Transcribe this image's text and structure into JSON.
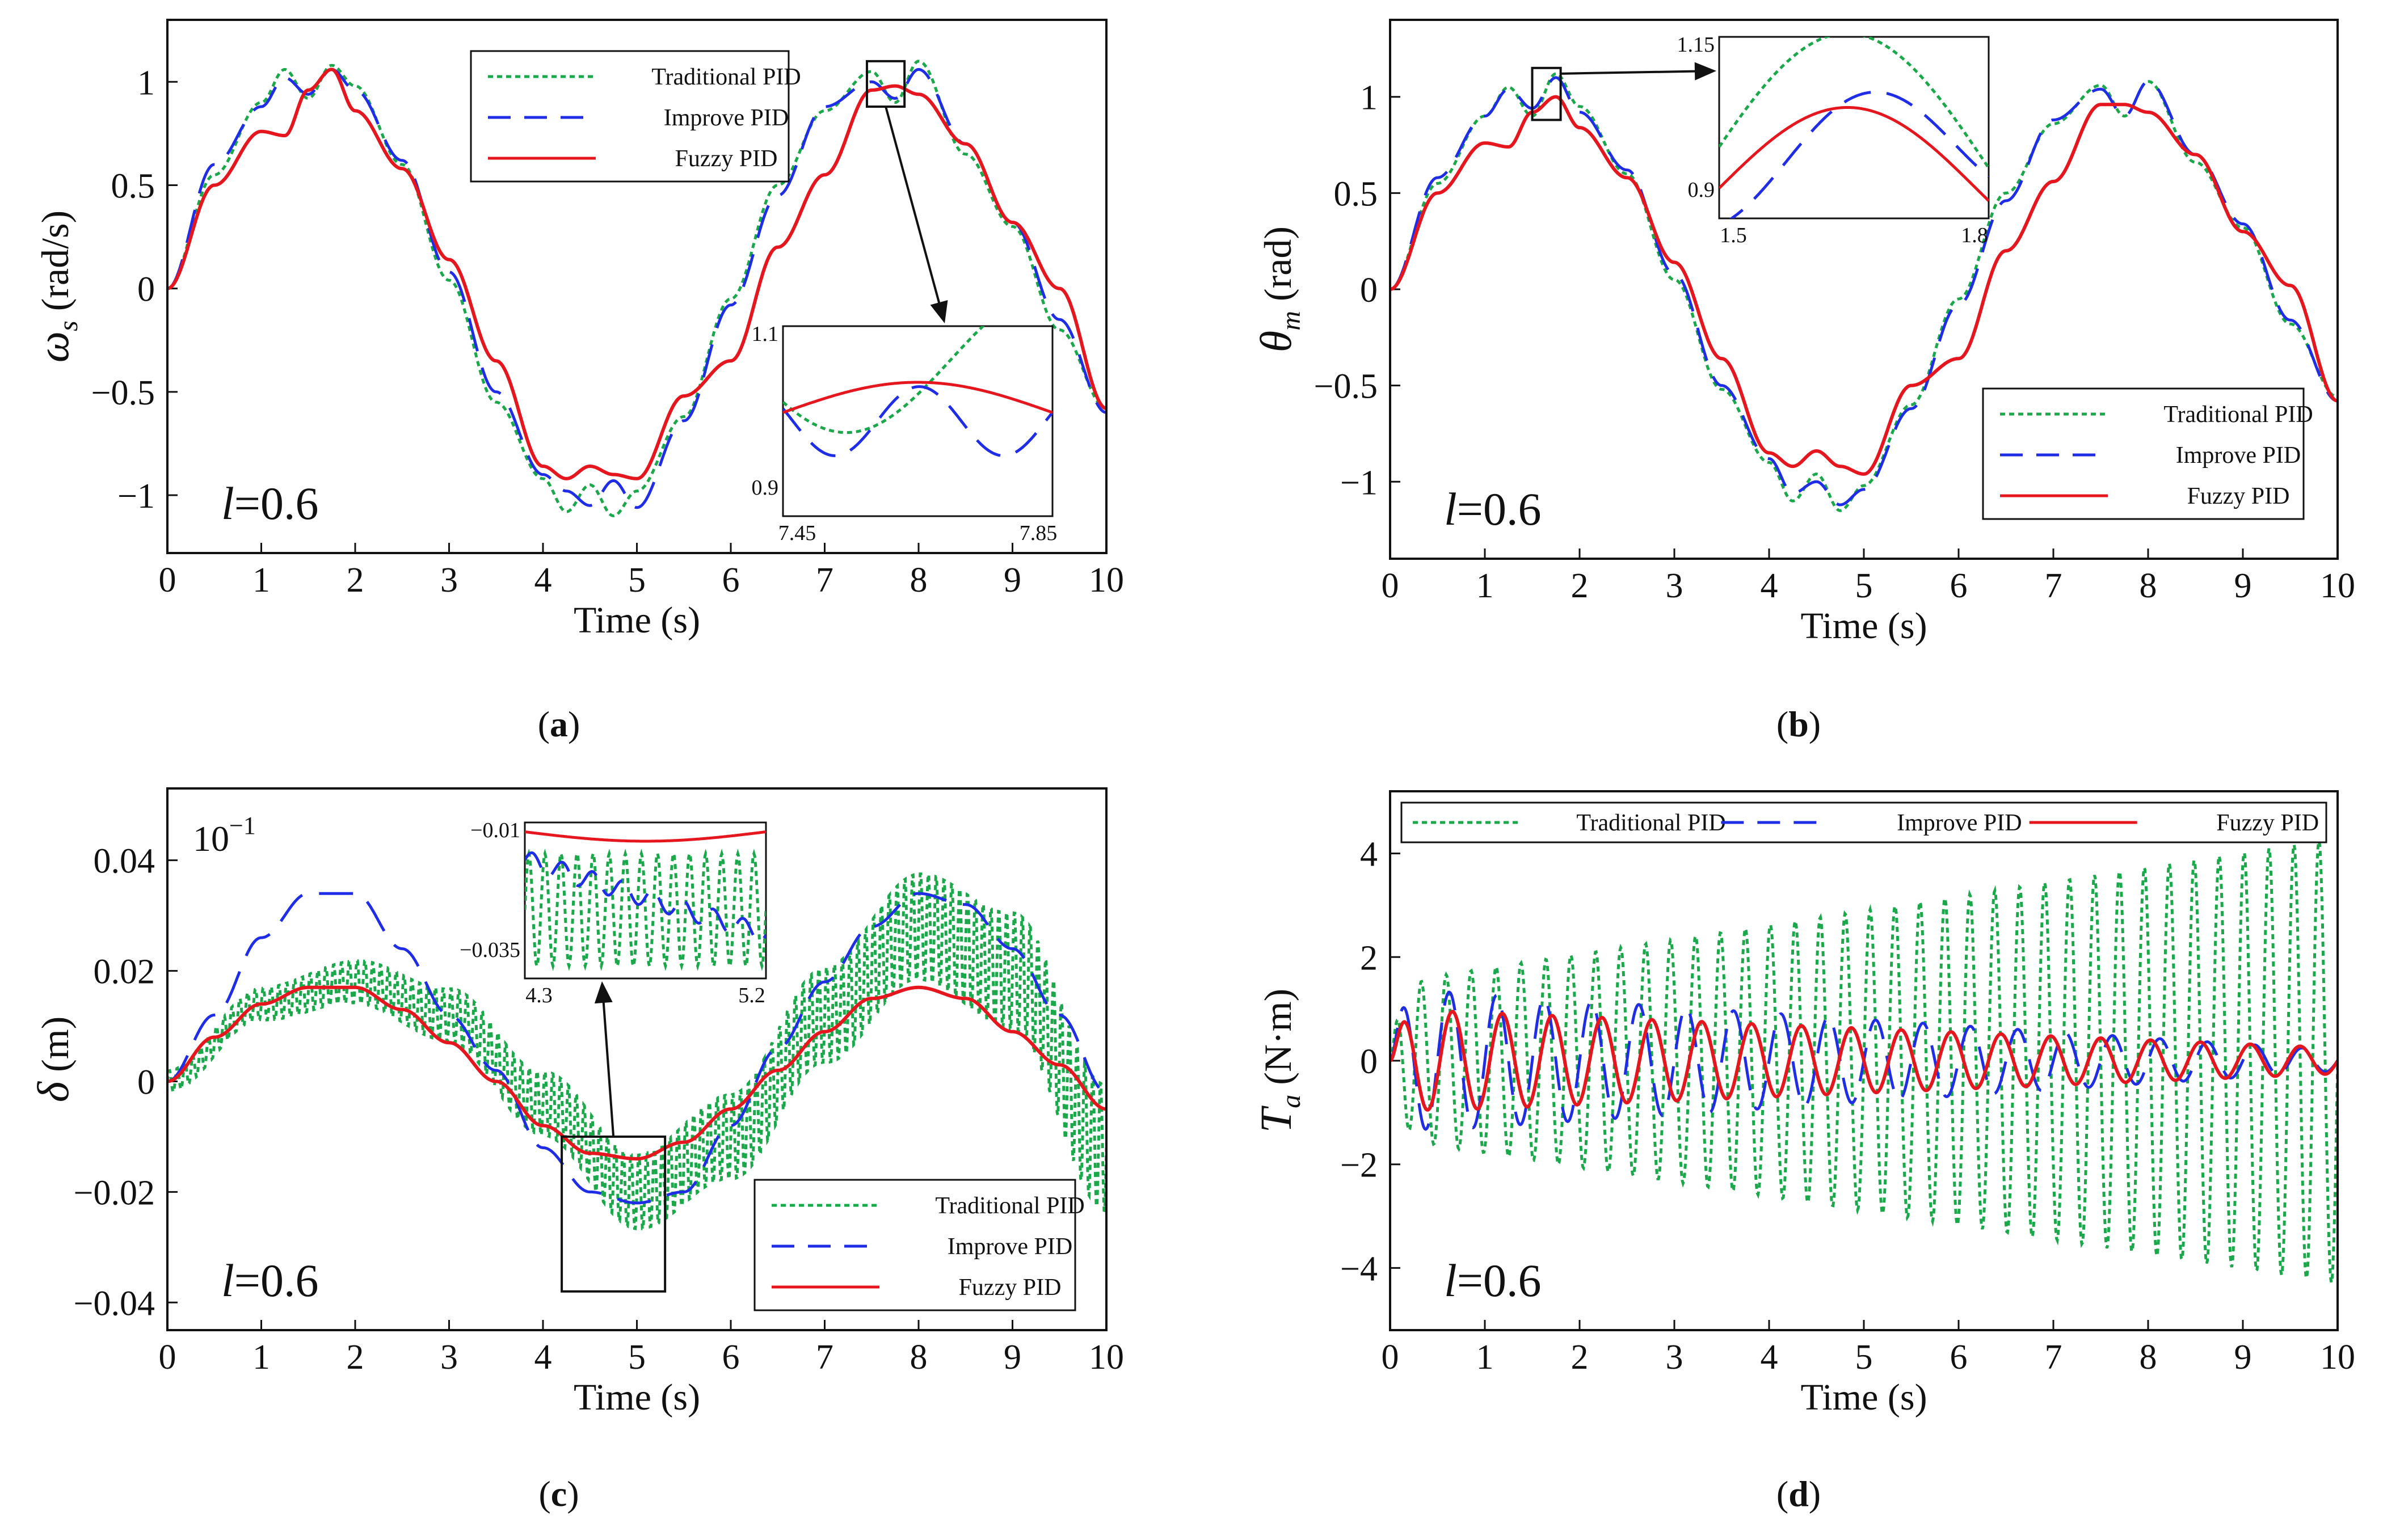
{
  "colors": {
    "traditional": "#1aa84a",
    "improve": "#1f2ee6",
    "fuzzy": "#e5161e",
    "axis": "#111111"
  },
  "legend_labels": [
    "Traditional PID",
    "Improve PID",
    "Fuzzy PID"
  ],
  "chart_data": [
    {
      "id": "a",
      "type": "line",
      "caption": "(a)",
      "label": "a",
      "xlabel": "Time  (s)",
      "ylabel_symbol": "ω",
      "ylabel_sub": "s",
      "ylabel_unit": " (rad/s)",
      "xlim": [
        0,
        10
      ],
      "ylim": [
        -1.28,
        1.3
      ],
      "xticks": [
        "0",
        "1",
        "2",
        "3",
        "4",
        "5",
        "6",
        "7",
        "8",
        "9",
        "10"
      ],
      "yticks": [
        {
          "v": 1,
          "t": "1"
        },
        {
          "v": 0.5,
          "t": "0.5"
        },
        {
          "v": 0,
          "t": "0"
        },
        {
          "v": -0.5,
          "t": "−0.5"
        },
        {
          "v": -1,
          "t": "−1"
        }
      ],
      "annotation": "l=0.6",
      "legend": "top-center",
      "series": [
        {
          "name": "Traditional PID",
          "x": [
            0,
            0.5,
            1,
            1.25,
            1.5,
            1.75,
            2,
            2.5,
            3,
            3.5,
            4,
            4.25,
            4.5,
            4.75,
            5,
            5.5,
            6,
            6.5,
            7,
            7.5,
            7.75,
            8,
            8.5,
            9,
            9.5,
            10
          ],
          "y": [
            0,
            0.55,
            0.9,
            1.06,
            0.92,
            1.08,
            0.98,
            0.6,
            0.04,
            -0.55,
            -0.92,
            -1.08,
            -0.95,
            -1.1,
            -0.98,
            -0.62,
            -0.05,
            0.5,
            0.86,
            1.05,
            0.9,
            1.1,
            0.65,
            0.3,
            -0.2,
            -0.58
          ]
        },
        {
          "name": "Improve PID",
          "x": [
            0,
            0.5,
            1,
            1.25,
            1.5,
            1.75,
            2,
            2.5,
            3,
            3.5,
            4,
            4.25,
            4.5,
            4.75,
            5,
            5.5,
            6,
            6.5,
            7,
            7.5,
            7.75,
            8,
            8.5,
            9,
            9.5,
            10
          ],
          "y": [
            0,
            0.6,
            0.88,
            1.02,
            0.94,
            1.06,
            0.96,
            0.62,
            0.08,
            -0.5,
            -0.9,
            -0.98,
            -1.05,
            -0.93,
            -1.06,
            -0.64,
            -0.08,
            0.45,
            0.88,
            1.0,
            0.92,
            1.06,
            0.7,
            0.32,
            -0.15,
            -0.6
          ]
        },
        {
          "name": "Fuzzy PID",
          "x": [
            0,
            0.5,
            1,
            1.25,
            1.5,
            1.75,
            2,
            2.5,
            3,
            3.5,
            4,
            4.25,
            4.5,
            4.75,
            5,
            5.5,
            6,
            6.5,
            7,
            7.5,
            7.75,
            8,
            8.5,
            9,
            9.5,
            10
          ],
          "y": [
            0,
            0.5,
            0.76,
            0.74,
            0.96,
            1.06,
            0.86,
            0.58,
            0.14,
            -0.35,
            -0.86,
            -0.92,
            -0.86,
            -0.9,
            -0.92,
            -0.52,
            -0.35,
            0.2,
            0.55,
            0.96,
            0.98,
            0.94,
            0.7,
            0.32,
            0.0,
            -0.58
          ]
        }
      ],
      "inset": {
        "xlim": [
          7.45,
          7.85
        ],
        "ylim": [
          0.88,
          1.1
        ],
        "xticks": [
          "7.45",
          "7.85"
        ],
        "yticks": [
          "1.1",
          "0.9"
        ],
        "zoom_box": [
          7.45,
          7.85,
          0.88,
          1.1
        ]
      }
    },
    {
      "id": "b",
      "type": "line",
      "caption": "(b)",
      "label": "b",
      "xlabel": "Time  (s)",
      "ylabel_symbol": "θ",
      "ylabel_sub": "m",
      "ylabel_unit": " (rad)",
      "xlim": [
        0,
        10
      ],
      "ylim": [
        -1.4,
        1.4
      ],
      "xticks": [
        "0",
        "1",
        "2",
        "3",
        "4",
        "5",
        "6",
        "7",
        "8",
        "9",
        "10"
      ],
      "yticks": [
        {
          "v": 1,
          "t": "1"
        },
        {
          "v": 0.5,
          "t": "0.5"
        },
        {
          "v": 0,
          "t": "0"
        },
        {
          "v": -0.5,
          "t": "−0.5"
        },
        {
          "v": -1,
          "t": "−1"
        }
      ],
      "annotation": "l=0.6",
      "legend": "bottom-right",
      "series": [
        {
          "name": "Traditional PID",
          "x": [
            0,
            0.5,
            1,
            1.25,
            1.5,
            1.75,
            2,
            2.5,
            3,
            3.5,
            4,
            4.25,
            4.5,
            4.75,
            5,
            5.5,
            6,
            6.5,
            7,
            7.5,
            7.75,
            8,
            8.5,
            9,
            9.5,
            10
          ],
          "y": [
            0,
            0.55,
            0.9,
            1.05,
            0.9,
            1.12,
            0.95,
            0.6,
            0.05,
            -0.52,
            -0.9,
            -1.1,
            -0.96,
            -1.15,
            -1.02,
            -0.6,
            -0.05,
            0.5,
            0.86,
            1.06,
            0.9,
            1.08,
            0.66,
            0.32,
            -0.18,
            -0.56
          ]
        },
        {
          "name": "Improve PID",
          "x": [
            0,
            0.5,
            1,
            1.25,
            1.5,
            1.75,
            2,
            2.5,
            3,
            3.5,
            4,
            4.25,
            4.5,
            4.75,
            5,
            5.5,
            6,
            6.5,
            7,
            7.5,
            7.75,
            8,
            8.5,
            9,
            9.5,
            10
          ],
          "y": [
            0,
            0.58,
            0.9,
            1.04,
            0.94,
            1.1,
            0.92,
            0.62,
            0.08,
            -0.5,
            -0.88,
            -1.06,
            -1.0,
            -1.12,
            -1.04,
            -0.62,
            -0.08,
            0.46,
            0.88,
            1.04,
            0.9,
            1.08,
            0.7,
            0.34,
            -0.16,
            -0.58
          ]
        },
        {
          "name": "Fuzzy PID",
          "x": [
            0,
            0.5,
            1,
            1.25,
            1.5,
            1.75,
            2,
            2.5,
            3,
            3.5,
            4,
            4.25,
            4.5,
            4.75,
            5,
            5.5,
            6,
            6.5,
            7,
            7.5,
            7.75,
            8,
            8.5,
            9,
            9.5,
            10
          ],
          "y": [
            0,
            0.5,
            0.76,
            0.74,
            0.92,
            1.0,
            0.84,
            0.58,
            0.14,
            -0.36,
            -0.85,
            -0.92,
            -0.84,
            -0.92,
            -0.96,
            -0.5,
            -0.36,
            0.2,
            0.56,
            0.96,
            0.96,
            0.92,
            0.7,
            0.3,
            0.02,
            -0.58
          ]
        }
      ],
      "inset": {
        "xlim": [
          1.5,
          1.8
        ],
        "ylim": [
          0.88,
          1.15
        ],
        "xticks": [
          "1.5",
          "1.8"
        ],
        "yticks": [
          "1.15",
          "0.9"
        ],
        "zoom_box": [
          1.5,
          1.8,
          0.88,
          1.15
        ]
      }
    },
    {
      "id": "c",
      "type": "line",
      "caption": "(c)",
      "label": "c",
      "xlabel": "Time  (s)",
      "ylabel_symbol": "δ",
      "ylabel_sub": "",
      "ylabel_unit": "  (m)",
      "xlim": [
        0,
        10
      ],
      "ylim": [
        -0.045,
        0.053
      ],
      "xticks": [
        "0",
        "1",
        "2",
        "3",
        "4",
        "5",
        "6",
        "7",
        "8",
        "9",
        "10"
      ],
      "yticks": [
        {
          "v": 0.04,
          "t": "0.04"
        },
        {
          "v": 0.02,
          "t": "0.02"
        },
        {
          "v": 0,
          "t": "0"
        },
        {
          "v": -0.02,
          "t": "−0.02"
        },
        {
          "v": -0.04,
          "t": "−0.04"
        }
      ],
      "exponent": "10",
      "exponent_power": "−1",
      "annotation": "l=0.6",
      "legend": "bottom-right",
      "series": [
        {
          "name": "Traditional PID",
          "amplitude_growth": [
            0.002,
            0.012
          ],
          "center_x": [
            0,
            1,
            2,
            3,
            4,
            5,
            6,
            7,
            8,
            9,
            10
          ],
          "center_y": [
            0,
            0.014,
            0.018,
            0.012,
            -0.004,
            -0.02,
            -0.01,
            0.012,
            0.028,
            0.02,
            -0.012
          ]
        },
        {
          "name": "Improve PID",
          "x": [
            0,
            0.5,
            1,
            1.5,
            2,
            2.5,
            3,
            3.5,
            4,
            4.5,
            5,
            5.5,
            6,
            6.5,
            7,
            7.5,
            8,
            8.5,
            9,
            9.5,
            10
          ],
          "y": [
            0,
            0.012,
            0.026,
            0.034,
            0.034,
            0.024,
            0.012,
            0.002,
            -0.012,
            -0.02,
            -0.022,
            -0.02,
            -0.008,
            0.006,
            0.018,
            0.028,
            0.034,
            0.032,
            0.024,
            0.012,
            -0.002
          ]
        },
        {
          "name": "Fuzzy PID",
          "x": [
            0,
            0.5,
            1,
            1.5,
            2,
            2.5,
            3,
            3.5,
            4,
            4.5,
            5,
            5.5,
            6,
            6.5,
            7,
            7.5,
            8,
            8.5,
            9,
            9.5,
            10
          ],
          "y": [
            0,
            0.008,
            0.014,
            0.017,
            0.017,
            0.013,
            0.007,
            0.0,
            -0.008,
            -0.013,
            -0.014,
            -0.011,
            -0.005,
            0.002,
            0.009,
            0.015,
            0.017,
            0.015,
            0.009,
            0.003,
            -0.005
          ]
        }
      ],
      "inset": {
        "xlim": [
          4.3,
          5.2
        ],
        "ylim": [
          -0.035,
          -0.01
        ],
        "xticks": [
          "4.3",
          "5.2"
        ],
        "yticks": [
          "−0.01",
          "−0.035"
        ],
        "zoom_box": [
          4.2,
          5.3,
          -0.038,
          -0.01
        ]
      }
    },
    {
      "id": "d",
      "type": "line",
      "caption": "(d)",
      "label": "d",
      "xlabel": "Time  (s)",
      "ylabel_symbol": "T",
      "ylabel_sub": "a",
      "ylabel_unit": "  (N·m)",
      "xlim": [
        0,
        10
      ],
      "ylim": [
        -5.2,
        5.2
      ],
      "xticks": [
        "0",
        "1",
        "2",
        "3",
        "4",
        "5",
        "6",
        "7",
        "8",
        "9",
        "10"
      ],
      "yticks": [
        {
          "v": 4,
          "t": "4"
        },
        {
          "v": 2,
          "t": "2"
        },
        {
          "v": 0,
          "t": "0"
        },
        {
          "v": -2,
          "t": "−2"
        },
        {
          "v": -4,
          "t": "−4"
        }
      ],
      "annotation": "l=0.6",
      "legend": "top",
      "series": [
        {
          "name": "Traditional PID",
          "amplitude_start": 1.5,
          "amplitude_end": 4.3,
          "cycles": 38
        },
        {
          "name": "Improve PID",
          "amplitude_start": 1.4,
          "amplitude_end": 0.2,
          "cycles": 20
        },
        {
          "name": "Fuzzy PID",
          "amplitude_start": 1.0,
          "amplitude_end": 0.25,
          "cycles": 19
        }
      ]
    }
  ]
}
